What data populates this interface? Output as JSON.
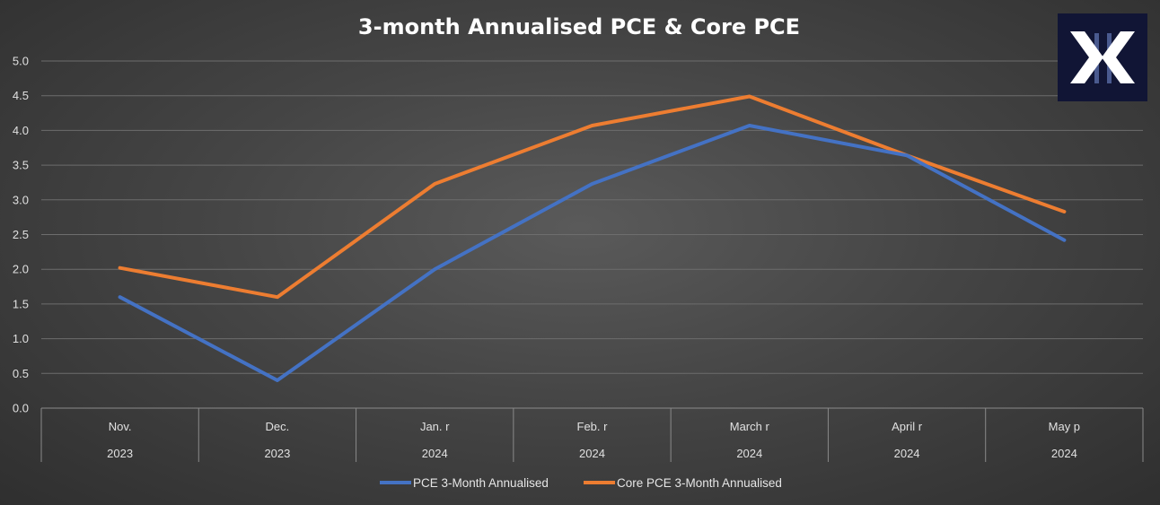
{
  "chart_data": {
    "type": "line",
    "title": "3-month Annualised PCE & Core PCE",
    "categories": [
      {
        "label": "Nov.",
        "year": "2023"
      },
      {
        "label": "Dec.",
        "year": "2023"
      },
      {
        "label": "Jan. r",
        "year": "2024"
      },
      {
        "label": "Feb. r",
        "year": "2024"
      },
      {
        "label": "March r",
        "year": "2024"
      },
      {
        "label": "April r",
        "year": "2024"
      },
      {
        "label": "May p",
        "year": "2024"
      }
    ],
    "series": [
      {
        "name": "PCE 3-Month Annualised",
        "color": "#4472c4",
        "values": [
          1.6,
          0.4,
          2.0,
          3.23,
          4.07,
          3.64,
          2.42
        ]
      },
      {
        "name": "Core PCE 3-Month Annualised",
        "color": "#ed7d31",
        "values": [
          2.02,
          1.6,
          3.23,
          4.07,
          4.49,
          3.64,
          2.83
        ]
      }
    ],
    "yticks": [
      "0.0",
      "0.5",
      "1.0",
      "1.5",
      "2.0",
      "2.5",
      "3.0",
      "3.5",
      "4.0",
      "4.5",
      "5.0"
    ],
    "ylim": [
      0,
      5
    ],
    "xlabel": "",
    "ylabel": "",
    "grid": true,
    "legend_position": "bottom-center"
  },
  "logo": {
    "icon": "x-brand-logo-icon",
    "background": "#111535"
  }
}
